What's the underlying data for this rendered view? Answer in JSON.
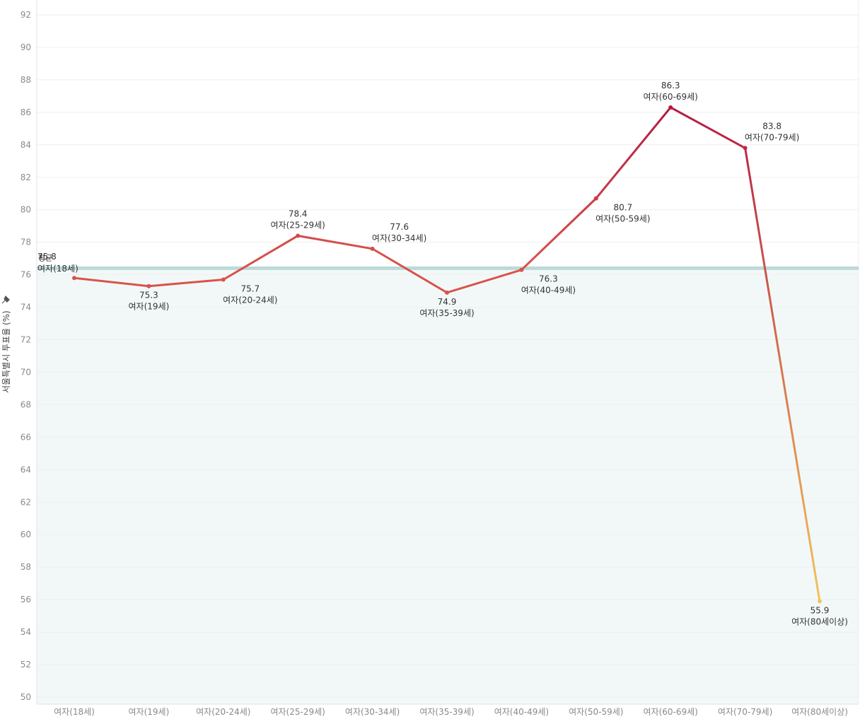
{
  "chart_data": {
    "type": "line",
    "title": "",
    "xlabel": "",
    "ylabel": "서울특별시 투표율 (%)",
    "ylabel_icon": "pin-icon",
    "ylim": [
      50,
      92
    ],
    "yticks": [
      50,
      52,
      54,
      56,
      58,
      60,
      62,
      64,
      66,
      68,
      70,
      72,
      74,
      76,
      78,
      80,
      82,
      84,
      86,
      88,
      90,
      92
    ],
    "categories": [
      "여자(18세)",
      "여자(19세)",
      "여자(20-24세)",
      "여자(25-29세)",
      "여자(30-34세)",
      "여자(35-39세)",
      "여자(40-49세)",
      "여자(50-59세)",
      "여자(60-69세)",
      "여자(70-79세)",
      "여자(80세이상)"
    ],
    "values": [
      75.8,
      75.3,
      75.7,
      78.4,
      77.6,
      74.9,
      76.3,
      80.7,
      86.3,
      83.8,
      55.9
    ],
    "value_labels": [
      "75.8",
      "75.3",
      "75.7",
      "78.4",
      "77.6",
      "74.9",
      "76.3",
      "80.7",
      "86.3",
      "83.8",
      "55.9"
    ],
    "label_positions": [
      "above",
      "below",
      "below",
      "above",
      "above",
      "below",
      "below",
      "below",
      "above",
      "above",
      "below"
    ],
    "reference_line": {
      "label": "평균",
      "value": 76.4,
      "shade_below": true
    },
    "grid": true,
    "colors": {
      "line_high": "#b31b42",
      "line_mid": "#d9534a",
      "line_low": "#f2c45c",
      "reference": "#bcd9d9",
      "shade": "#f2f8f8",
      "grid": "#efefef"
    }
  }
}
